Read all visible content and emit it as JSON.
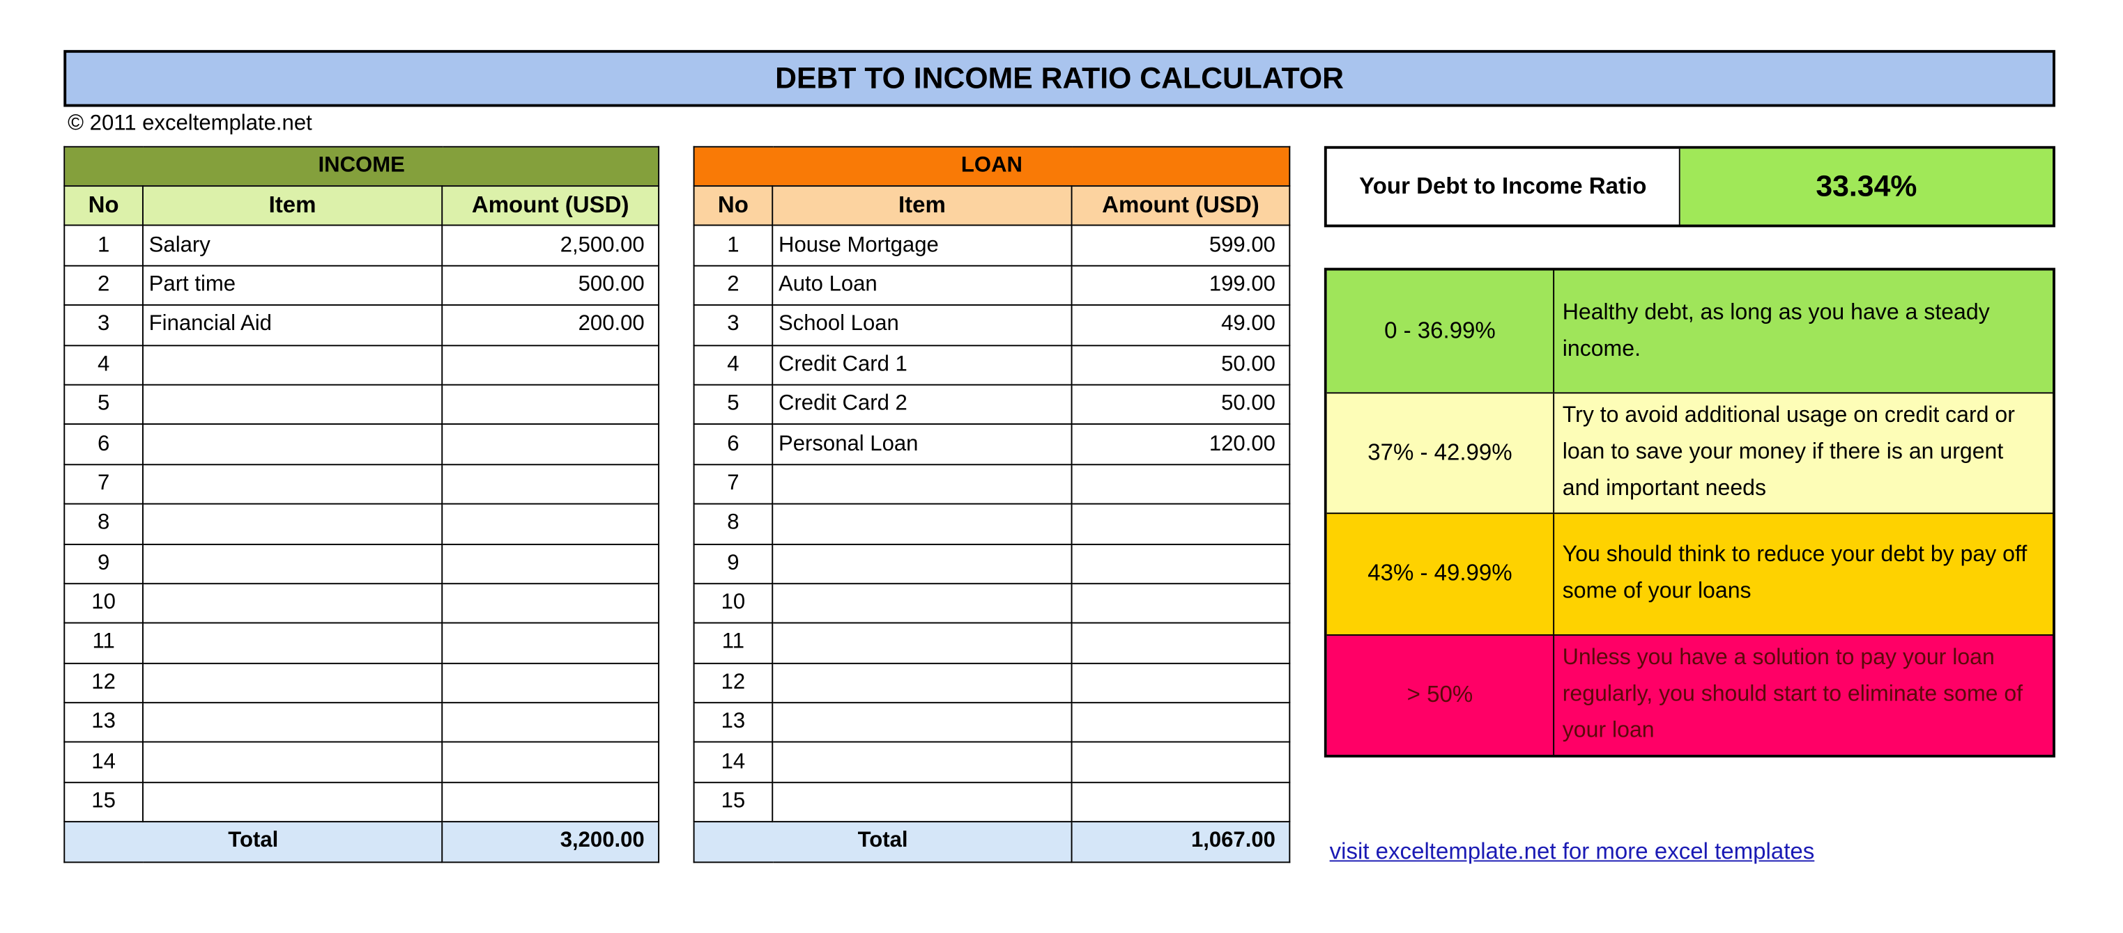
{
  "title": "DEBT TO INCOME RATIO CALCULATOR",
  "copyright": "© 2011 exceltemplate.net",
  "income": {
    "section_label": "INCOME",
    "columns": [
      "No",
      "Item",
      "Amount (USD)"
    ],
    "rows": [
      {
        "no": "1",
        "item": "Salary",
        "amount": "2,500.00"
      },
      {
        "no": "2",
        "item": "Part time",
        "amount": "500.00"
      },
      {
        "no": "3",
        "item": "Financial Aid",
        "amount": "200.00"
      },
      {
        "no": "4",
        "item": "",
        "amount": ""
      },
      {
        "no": "5",
        "item": "",
        "amount": ""
      },
      {
        "no": "6",
        "item": "",
        "amount": ""
      },
      {
        "no": "7",
        "item": "",
        "amount": ""
      },
      {
        "no": "8",
        "item": "",
        "amount": ""
      },
      {
        "no": "9",
        "item": "",
        "amount": ""
      },
      {
        "no": "10",
        "item": "",
        "amount": ""
      },
      {
        "no": "11",
        "item": "",
        "amount": ""
      },
      {
        "no": "12",
        "item": "",
        "amount": ""
      },
      {
        "no": "13",
        "item": "",
        "amount": ""
      },
      {
        "no": "14",
        "item": "",
        "amount": ""
      },
      {
        "no": "15",
        "item": "",
        "amount": ""
      }
    ],
    "total_label": "Total",
    "total": "3,200.00"
  },
  "loan": {
    "section_label": "LOAN",
    "columns": [
      "No",
      "Item",
      "Amount (USD)"
    ],
    "rows": [
      {
        "no": "1",
        "item": "House Mortgage",
        "amount": "599.00"
      },
      {
        "no": "2",
        "item": "Auto Loan",
        "amount": "199.00"
      },
      {
        "no": "3",
        "item": "School Loan",
        "amount": "49.00"
      },
      {
        "no": "4",
        "item": "Credit Card 1",
        "amount": "50.00"
      },
      {
        "no": "5",
        "item": "Credit Card 2",
        "amount": "50.00"
      },
      {
        "no": "6",
        "item": "Personal Loan",
        "amount": "120.00"
      },
      {
        "no": "7",
        "item": "",
        "amount": ""
      },
      {
        "no": "8",
        "item": "",
        "amount": ""
      },
      {
        "no": "9",
        "item": "",
        "amount": ""
      },
      {
        "no": "10",
        "item": "",
        "amount": ""
      },
      {
        "no": "11",
        "item": "",
        "amount": ""
      },
      {
        "no": "12",
        "item": "",
        "amount": ""
      },
      {
        "no": "13",
        "item": "",
        "amount": ""
      },
      {
        "no": "14",
        "item": "",
        "amount": ""
      },
      {
        "no": "15",
        "item": "",
        "amount": ""
      }
    ],
    "total_label": "Total",
    "total": "1,067.00"
  },
  "ratio": {
    "label": "Your Debt to Income Ratio",
    "value": "33.34%"
  },
  "legend": [
    {
      "range": "0 - 36.99%",
      "text": "Healthy debt, as long as you have a steady income.",
      "bg": "#9fe55a",
      "color": "#000000"
    },
    {
      "range": "37% - 42.99%",
      "text": "Try to avoid additional usage on credit card or loan to save your money if there is an urgent and important needs",
      "bg": "#fdfdb7",
      "color": "#000000"
    },
    {
      "range": "43% - 49.99%",
      "text": "You should think to reduce your debt by pay off some of your loans",
      "bg": "#fed200",
      "color": "#000000"
    },
    {
      "range": "> 50%",
      "text": "Unless you have a solution to pay your loan regularly, you should start to eliminate some of your loan",
      "bg": "#ff0066",
      "color": "#5a0a0a"
    }
  ],
  "link": "visit exceltemplate.net for more excel templates",
  "colors": {
    "title_bg": "#a9c4ee",
    "income_header": "#84a03c",
    "income_col_header": "#dcf1aa",
    "loan_header": "#f97a06",
    "loan_col_header": "#fcd3a0",
    "total_bg": "#d5e6f8",
    "ratio_bg": "#a0e858"
  }
}
